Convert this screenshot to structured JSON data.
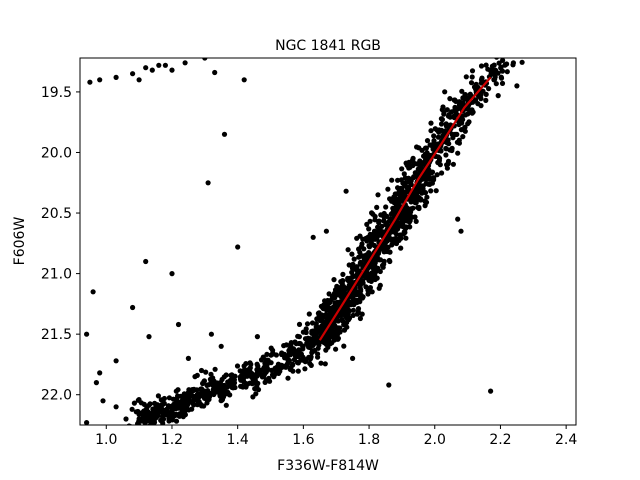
{
  "chart_data": {
    "type": "scatter",
    "title": "NGC 1841 RGB",
    "xlabel": "F336W-F814W",
    "ylabel": "F606W",
    "xlim": [
      0.92,
      2.43
    ],
    "ylim": [
      22.25,
      19.22
    ],
    "y_inverted": true,
    "grid": false,
    "legend": "none",
    "xticks": [
      "1.0",
      "1.2",
      "1.4",
      "1.6",
      "1.8",
      "2.0",
      "2.2",
      "2.4"
    ],
    "yticks": [
      "19.5",
      "20.0",
      "20.5",
      "21.0",
      "21.5",
      "22.0"
    ],
    "colors": {
      "points": "#000000",
      "fit_line": "#cc0000",
      "axes": "#000000",
      "background": "#ffffff"
    },
    "fit_line": {
      "x": [
        1.65,
        1.72,
        1.8,
        1.88,
        1.95,
        2.02,
        2.09,
        2.17
      ],
      "y": [
        21.55,
        21.25,
        20.9,
        20.55,
        20.22,
        19.93,
        19.63,
        19.38
      ]
    },
    "ridge": {
      "x": [
        1.12,
        1.2,
        1.3,
        1.4,
        1.5,
        1.58,
        1.64,
        1.7,
        1.78,
        1.86,
        1.94,
        2.02,
        2.09,
        2.16,
        2.22
      ],
      "y": [
        22.22,
        22.1,
        21.98,
        21.88,
        21.78,
        21.68,
        21.58,
        21.35,
        21.0,
        20.65,
        20.25,
        19.9,
        19.62,
        19.38,
        19.22
      ]
    },
    "point_count": 1600,
    "outliers": {
      "x": [
        0.95,
        0.98,
        1.03,
        1.08,
        1.12,
        1.16,
        1.2,
        1.24,
        1.3,
        1.33,
        1.36,
        1.42,
        1.1,
        1.14,
        1.18,
        1.12,
        1.2,
        0.96,
        1.08,
        0.94,
        0.97,
        1.03,
        1.13,
        1.22,
        1.32,
        1.35,
        1.29,
        1.25,
        0.98,
        0.99,
        1.03,
        1.1,
        1.15,
        1.24,
        1.37,
        1.55,
        1.57,
        1.49,
        1.62,
        1.73,
        1.75,
        1.86,
        2.08,
        2.17,
        2.18,
        2.25,
        2.07,
        1.67,
        1.63,
        1.31,
        1.4,
        1.46,
        1.27,
        0.94
      ],
      "y": [
        19.42,
        19.4,
        19.38,
        19.35,
        19.3,
        19.28,
        19.32,
        19.26,
        19.22,
        19.34,
        19.85,
        19.4,
        19.4,
        19.32,
        19.28,
        20.9,
        21.0,
        21.15,
        21.28,
        21.5,
        21.9,
        21.72,
        21.52,
        21.42,
        21.5,
        21.6,
        21.8,
        21.7,
        21.82,
        22.05,
        22.1,
        22.2,
        22.15,
        22.05,
        21.98,
        21.7,
        21.62,
        21.75,
        21.6,
        20.32,
        21.7,
        21.92,
        20.65,
        21.97,
        19.4,
        19.45,
        20.55,
        20.65,
        20.7,
        20.25,
        20.78,
        21.52,
        21.85,
        22.23
      ]
    }
  }
}
